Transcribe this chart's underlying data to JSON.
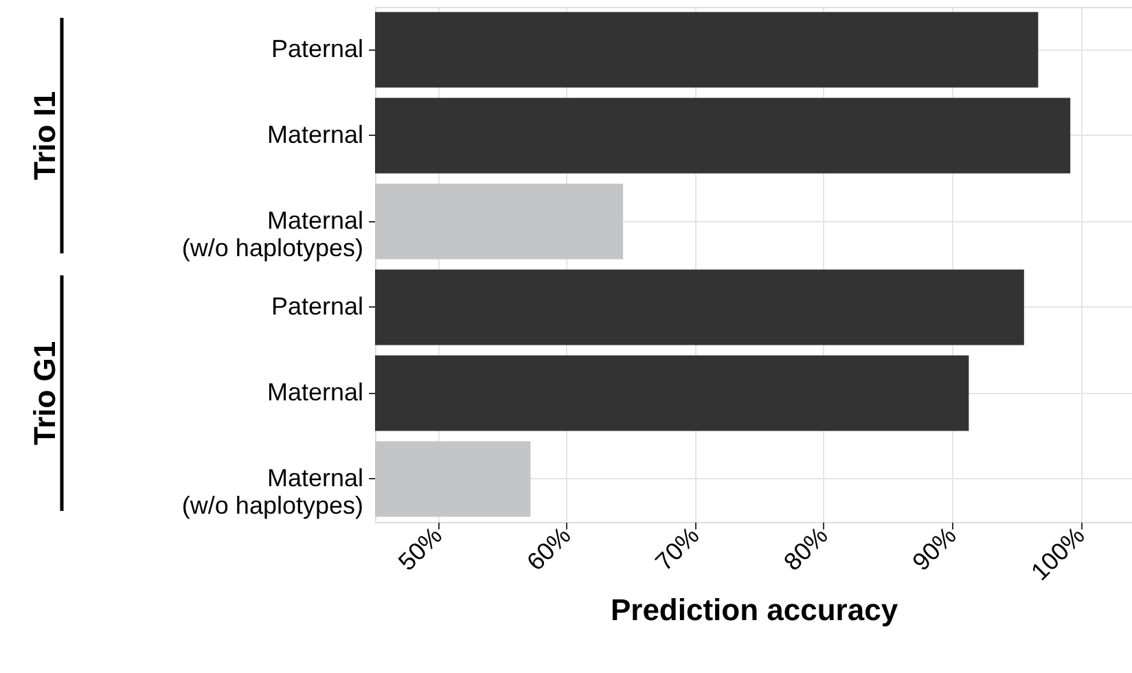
{
  "chart_data": {
    "type": "bar",
    "orientation": "horizontal",
    "categories": [
      "Paternal",
      "Maternal",
      "Maternal\n(w/o haplotypes)",
      "Paternal",
      "Maternal",
      "Maternal\n(w/o haplotypes)"
    ],
    "values": [
      96.7,
      99.2,
      64.4,
      95.6,
      91.3,
      57.2
    ],
    "colors": [
      "#333333",
      "#333333",
      "#c4c5c7",
      "#333333",
      "#333333",
      "#c4c5c7"
    ],
    "xlabel": "Prediction accuracy",
    "xlim": [
      45.1,
      104
    ],
    "xticks": [
      {
        "value": 50,
        "label": "50%"
      },
      {
        "value": 60,
        "label": "60%"
      },
      {
        "value": 70,
        "label": "70%"
      },
      {
        "value": 80,
        "label": "80%"
      },
      {
        "value": 90,
        "label": "90%"
      },
      {
        "value": 100,
        "label": "100%"
      }
    ],
    "grid": true,
    "annotations": [
      "Trio I1",
      "Trio G1"
    ]
  }
}
